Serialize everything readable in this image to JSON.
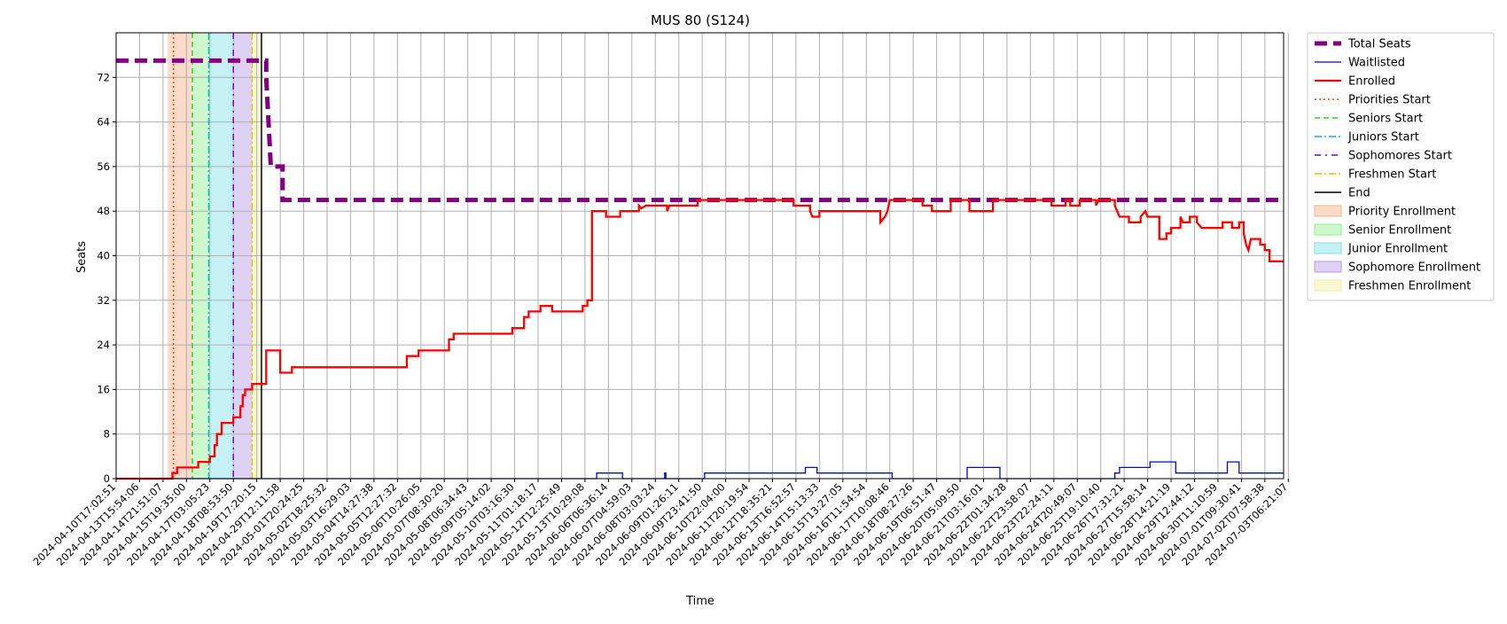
{
  "chart_data": {
    "type": "line",
    "title": "MUS 80 (S124)",
    "xlabel": "Time",
    "ylabel": "Seats",
    "ylim": [
      0,
      80
    ],
    "yticks": [
      0,
      8,
      16,
      24,
      32,
      40,
      48,
      56,
      64,
      72
    ],
    "grid": true,
    "legend_position": "outside-right",
    "x_tick_labels": [
      "2024-04-10T17:02:51",
      "2024-04-13T15:54:06",
      "2024-04-14T21:51:07",
      "2024-04-15T19:35:00",
      "2024-04-17T03:05:23",
      "2024-04-18T08:53:50",
      "2024-04-19T17:20:15",
      "2024-04-29T12:11:58",
      "2024-05-01T20:24:25",
      "2024-05-02T18:25:32",
      "2024-05-03T16:29:03",
      "2024-05-04T14:27:38",
      "2024-05-05T12:27:32",
      "2024-05-06T10:26:05",
      "2024-05-07T08:30:20",
      "2024-05-08T06:34:43",
      "2024-05-09T05:14:02",
      "2024-05-10T03:16:30",
      "2024-05-11T01:18:17",
      "2024-05-12T12:25:49",
      "2024-05-13T10:29:08",
      "2024-06-06T06:36:14",
      "2024-06-07T04:59:03",
      "2024-06-08T03:03:24",
      "2024-06-09T01:26:11",
      "2024-06-09T23:41:50",
      "2024-06-10T22:04:00",
      "2024-06-11T20:19:54",
      "2024-06-12T18:35:21",
      "2024-06-13T16:52:57",
      "2024-06-14T15:13:33",
      "2024-06-15T13:27:05",
      "2024-06-16T11:54:54",
      "2024-06-17T10:08:46",
      "2024-06-18T08:27:26",
      "2024-06-19T06:51:47",
      "2024-06-20T05:09:50",
      "2024-06-21T03:16:01",
      "2024-06-22T01:34:28",
      "2024-06-22T23:58:07",
      "2024-06-23T22:24:11",
      "2024-06-24T20:49:07",
      "2024-06-25T19:10:40",
      "2024-06-26T17:31:21",
      "2024-06-27T15:58:14",
      "2024-06-28T14:21:19",
      "2024-06-29T12:44:12",
      "2024-06-30T11:10:59",
      "2024-07-01T09:30:41",
      "2024-07-02T07:58:38",
      "2024-07-03T06:21:07"
    ],
    "x_index_range": [
      0,
      49.8
    ],
    "series": [
      {
        "name": "Total Seats",
        "color": "#800080",
        "style": "dashed-thick",
        "step_points": [
          [
            0,
            75
          ],
          [
            6.4,
            75
          ],
          [
            6.4,
            72
          ],
          [
            6.6,
            56
          ],
          [
            7.1,
            56
          ],
          [
            7.1,
            50
          ],
          [
            7.3,
            50
          ],
          [
            49.8,
            50
          ]
        ]
      },
      {
        "name": "Waitlisted",
        "color": "#0000ff",
        "style": "solid-thin",
        "step_points": [
          [
            0,
            0
          ],
          [
            20.5,
            0
          ],
          [
            20.5,
            1
          ],
          [
            21.6,
            1
          ],
          [
            21.6,
            0
          ],
          [
            23.4,
            0
          ],
          [
            23.4,
            1
          ],
          [
            23.45,
            1
          ],
          [
            23.45,
            0
          ],
          [
            25.1,
            0
          ],
          [
            25.1,
            1
          ],
          [
            29.4,
            1
          ],
          [
            29.4,
            2
          ],
          [
            29.9,
            2
          ],
          [
            29.9,
            1
          ],
          [
            33.1,
            1
          ],
          [
            33.1,
            0
          ],
          [
            36.3,
            0
          ],
          [
            36.3,
            2
          ],
          [
            37.7,
            2
          ],
          [
            37.7,
            0
          ],
          [
            42.6,
            0
          ],
          [
            42.6,
            1
          ],
          [
            42.8,
            1
          ],
          [
            42.8,
            2
          ],
          [
            44.1,
            2
          ],
          [
            44.1,
            3
          ],
          [
            45.2,
            3
          ],
          [
            45.2,
            1
          ],
          [
            46.2,
            1
          ],
          [
            46.2,
            1
          ],
          [
            47.4,
            1
          ],
          [
            47.4,
            3
          ],
          [
            47.9,
            3
          ],
          [
            47.9,
            1
          ],
          [
            49.8,
            1
          ]
        ]
      },
      {
        "name": "Enrolled",
        "color": "#ff0000",
        "style": "solid-thick",
        "step_points": [
          [
            0,
            0
          ],
          [
            2.4,
            0
          ],
          [
            2.4,
            1
          ],
          [
            2.6,
            1
          ],
          [
            2.6,
            2
          ],
          [
            3.5,
            2
          ],
          [
            3.5,
            3
          ],
          [
            4.0,
            3
          ],
          [
            4.0,
            4
          ],
          [
            4.2,
            4
          ],
          [
            4.2,
            6
          ],
          [
            4.3,
            6
          ],
          [
            4.3,
            8
          ],
          [
            4.5,
            8
          ],
          [
            4.5,
            10
          ],
          [
            5.0,
            10
          ],
          [
            5.0,
            11
          ],
          [
            5.3,
            11
          ],
          [
            5.3,
            13
          ],
          [
            5.4,
            13
          ],
          [
            5.4,
            15
          ],
          [
            5.5,
            15
          ],
          [
            5.5,
            16
          ],
          [
            5.8,
            16
          ],
          [
            5.8,
            17
          ],
          [
            6.4,
            17
          ],
          [
            6.4,
            23
          ],
          [
            7.0,
            23
          ],
          [
            7.0,
            19
          ],
          [
            7.5,
            19
          ],
          [
            7.5,
            20
          ],
          [
            12.4,
            20
          ],
          [
            12.4,
            22
          ],
          [
            12.9,
            22
          ],
          [
            12.9,
            23
          ],
          [
            14.2,
            23
          ],
          [
            14.2,
            25
          ],
          [
            14.4,
            25
          ],
          [
            14.4,
            26
          ],
          [
            16.9,
            26
          ],
          [
            16.9,
            27
          ],
          [
            17.4,
            27
          ],
          [
            17.4,
            29
          ],
          [
            17.6,
            29
          ],
          [
            17.6,
            30
          ],
          [
            18.1,
            30
          ],
          [
            18.1,
            31
          ],
          [
            18.6,
            31
          ],
          [
            18.6,
            30
          ],
          [
            19.9,
            30
          ],
          [
            19.9,
            31
          ],
          [
            20.1,
            31
          ],
          [
            20.1,
            32
          ],
          [
            20.3,
            32
          ],
          [
            20.3,
            48
          ],
          [
            20.9,
            48
          ],
          [
            20.9,
            47
          ],
          [
            21.5,
            47
          ],
          [
            21.5,
            48
          ],
          [
            22.3,
            48
          ],
          [
            22.3,
            49
          ],
          [
            22.4,
            48.5
          ],
          [
            22.6,
            49
          ],
          [
            23.5,
            49
          ],
          [
            23.5,
            48
          ],
          [
            23.6,
            49
          ],
          [
            24.8,
            49
          ],
          [
            24.8,
            50
          ],
          [
            25.5,
            50
          ],
          [
            28.9,
            50
          ],
          [
            28.9,
            49
          ],
          [
            29.6,
            49
          ],
          [
            29.6,
            48
          ],
          [
            29.7,
            47
          ],
          [
            30.0,
            47
          ],
          [
            30.0,
            48
          ],
          [
            32.6,
            48
          ],
          [
            32.6,
            46
          ],
          [
            32.8,
            47
          ],
          [
            32.9,
            48
          ],
          [
            33.0,
            50
          ],
          [
            33.7,
            50
          ],
          [
            34.4,
            50
          ],
          [
            34.4,
            49
          ],
          [
            34.8,
            49
          ],
          [
            34.8,
            48
          ],
          [
            35.6,
            48
          ],
          [
            35.6,
            50
          ],
          [
            36.4,
            50
          ],
          [
            36.4,
            48
          ],
          [
            37.4,
            48
          ],
          [
            37.4,
            50
          ],
          [
            39.9,
            50
          ],
          [
            39.9,
            49
          ],
          [
            40.5,
            49
          ],
          [
            40.5,
            50
          ],
          [
            40.7,
            50
          ],
          [
            40.7,
            49
          ],
          [
            41.1,
            49
          ],
          [
            41.1,
            50
          ],
          [
            41.8,
            50
          ],
          [
            41.8,
            49
          ],
          [
            41.9,
            50
          ],
          [
            42.6,
            50
          ],
          [
            42.6,
            49
          ],
          [
            42.7,
            48
          ],
          [
            42.8,
            47
          ],
          [
            43.2,
            47
          ],
          [
            43.2,
            46
          ],
          [
            43.7,
            46
          ],
          [
            43.7,
            47
          ],
          [
            43.9,
            48
          ],
          [
            44.0,
            47
          ],
          [
            44.5,
            47
          ],
          [
            44.5,
            43
          ],
          [
            44.8,
            43
          ],
          [
            44.8,
            44
          ],
          [
            45.0,
            44
          ],
          [
            45.0,
            45
          ],
          [
            45.4,
            45
          ],
          [
            45.4,
            47
          ],
          [
            45.5,
            46
          ],
          [
            45.8,
            46
          ],
          [
            45.8,
            47
          ],
          [
            46.1,
            47
          ],
          [
            46.1,
            46
          ],
          [
            46.3,
            45
          ],
          [
            47.2,
            45
          ],
          [
            47.2,
            46
          ],
          [
            47.6,
            46
          ],
          [
            47.6,
            45
          ],
          [
            47.9,
            45
          ],
          [
            47.9,
            46
          ],
          [
            48.1,
            46
          ],
          [
            48.1,
            44
          ],
          [
            48.2,
            42
          ],
          [
            48.3,
            41
          ],
          [
            48.4,
            43
          ],
          [
            48.8,
            43
          ],
          [
            48.8,
            42
          ],
          [
            49.0,
            42
          ],
          [
            49.0,
            41
          ],
          [
            49.2,
            41
          ],
          [
            49.2,
            39
          ],
          [
            49.8,
            39
          ]
        ]
      }
    ],
    "vertical_markers": [
      {
        "name": "Priorities Start",
        "x": 2.45,
        "color": "#ff4500",
        "style": "dotted"
      },
      {
        "name": "Seniors Start",
        "x": 3.25,
        "color": "#32cd32",
        "style": "dashed"
      },
      {
        "name": "Juniors Start",
        "x": 3.95,
        "color": "#00bfbf",
        "style": "dashdot"
      },
      {
        "name": "Sophomores Start",
        "x": 5.0,
        "color": "#6a0dad",
        "style": "dashdot-sparse"
      },
      {
        "name": "Freshmen Start",
        "x": 5.8,
        "color": "#e6c300",
        "style": "dashdot"
      },
      {
        "name": "End",
        "x": 6.2,
        "color": "#000000",
        "style": "solid"
      }
    ],
    "shaded_spans": [
      {
        "name": "Priority Enrollment",
        "x0": 2.2,
        "x1": 3.25,
        "color": "#f5b08a"
      },
      {
        "name": "Senior Enrollment",
        "x0": 3.25,
        "x1": 3.95,
        "color": "#90ee90"
      },
      {
        "name": "Junior Enrollment",
        "x0": 3.95,
        "x1": 5.0,
        "color": "#7fdfe6"
      },
      {
        "name": "Sophomore Enrollment",
        "x0": 5.0,
        "x1": 5.8,
        "color": "#b999e6"
      },
      {
        "name": "Freshmen Enrollment",
        "x0": 5.8,
        "x1": 6.15,
        "color": "#f0f0a0"
      }
    ],
    "legend": [
      {
        "label": "Total Seats",
        "kind": "line",
        "color": "#800080",
        "style": "dashed-thick"
      },
      {
        "label": "Waitlisted",
        "kind": "line",
        "color": "#0000ff",
        "style": "solid-thin"
      },
      {
        "label": "Enrolled",
        "kind": "line",
        "color": "#ff0000",
        "style": "solid-thick"
      },
      {
        "label": "Priorities Start",
        "kind": "line",
        "color": "#ff4500",
        "style": "dotted"
      },
      {
        "label": "Seniors Start",
        "kind": "line",
        "color": "#32cd32",
        "style": "dashed"
      },
      {
        "label": "Juniors Start",
        "kind": "line",
        "color": "#00bfbf",
        "style": "dashdot"
      },
      {
        "label": "Sophomores Start",
        "kind": "line",
        "color": "#6a0dad",
        "style": "dashdot-sparse"
      },
      {
        "label": "Freshmen Start",
        "kind": "line",
        "color": "#e6c300",
        "style": "dashdot"
      },
      {
        "label": "End",
        "kind": "line",
        "color": "#000000",
        "style": "solid"
      },
      {
        "label": "Priority Enrollment",
        "kind": "patch",
        "color": "#f5b08a"
      },
      {
        "label": "Senior Enrollment",
        "kind": "patch",
        "color": "#90ee90"
      },
      {
        "label": "Junior Enrollment",
        "kind": "patch",
        "color": "#7fdfe6"
      },
      {
        "label": "Sophomore Enrollment",
        "kind": "patch",
        "color": "#b999e6"
      },
      {
        "label": "Freshmen Enrollment",
        "kind": "patch",
        "color": "#f0f0a0"
      }
    ]
  }
}
